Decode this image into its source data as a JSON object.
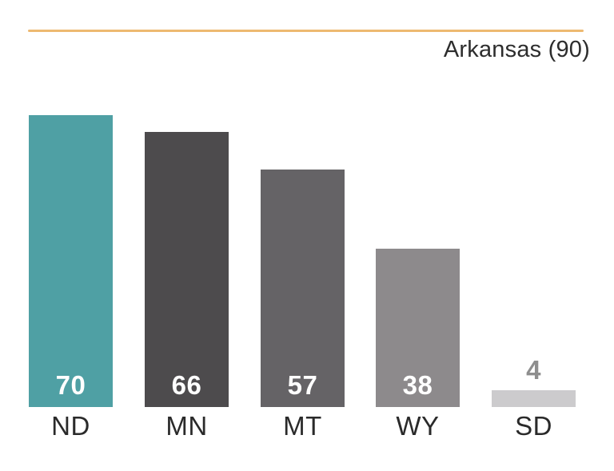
{
  "header": {
    "accent_rule_color": "#edb971"
  },
  "chart_data": {
    "type": "bar",
    "title": "Arkansas (90)",
    "categories": [
      "ND",
      "MN",
      "MT",
      "WY",
      "SD"
    ],
    "values": [
      70,
      66,
      57,
      38,
      4
    ],
    "reference_value": 90,
    "reference_label": "Arkansas",
    "xlabel": "",
    "ylabel": "",
    "ylim": [
      0,
      70
    ],
    "grid": false,
    "legend": false,
    "bar_colors": [
      "#4fa0a4",
      "#4d4b4d",
      "#656366",
      "#8d8a8c",
      "#cccbcd"
    ],
    "value_label_colors": [
      "#ffffff",
      "#ffffff",
      "#ffffff",
      "#ffffff",
      "#8e8e8e"
    ],
    "value_label_positions": [
      "inside",
      "inside",
      "inside",
      "inside",
      "above"
    ]
  }
}
